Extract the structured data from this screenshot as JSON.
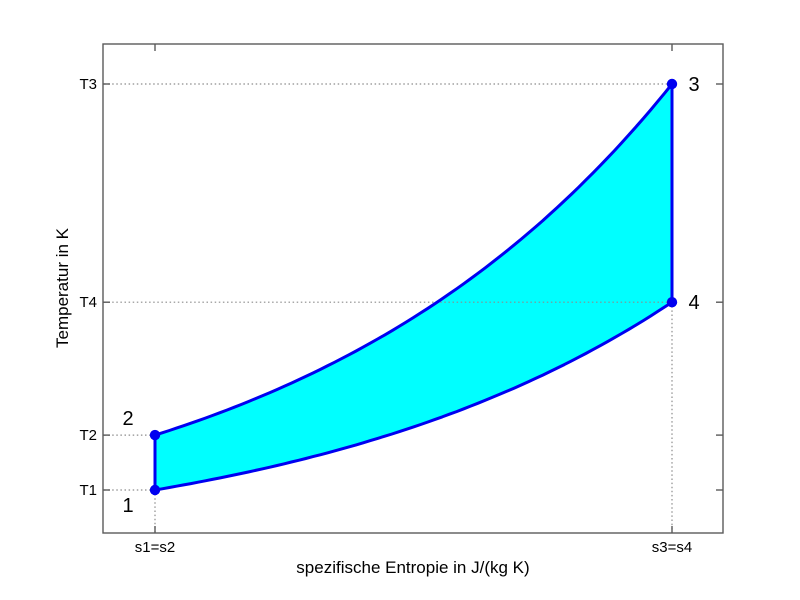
{
  "figure": {
    "background": "#ffffff"
  },
  "chart_data": {
    "type": "area",
    "title": "",
    "xlabel": "spezifische Entropie in J/(kg K)",
    "ylabel": "Temperatur in K",
    "grid": "off",
    "legend": "none",
    "x_ticks": [
      {
        "label": "s1=s2",
        "s": 0
      },
      {
        "label": "s3=s4",
        "s": 1
      }
    ],
    "y_ticks": [
      {
        "label": "T1",
        "T": 1.0
      },
      {
        "label": "T2",
        "T": 1.85
      },
      {
        "label": "T4",
        "T": 3.91
      },
      {
        "label": "T3",
        "T": 7.29
      }
    ],
    "axis_ranges": {
      "s": [
        -0.1,
        1.1
      ],
      "T": [
        0.33,
        7.91
      ]
    },
    "points": [
      {
        "label": "1",
        "s": 0,
        "T": 1.0
      },
      {
        "label": "2",
        "s": 0,
        "T": 1.85
      },
      {
        "label": "3",
        "s": 1,
        "T": 7.29
      },
      {
        "label": "4",
        "s": 1,
        "T": 3.91
      }
    ],
    "edges": [
      {
        "from": 0,
        "to": 1,
        "type": "line"
      },
      {
        "from": 1,
        "to": 2,
        "type": "exponential"
      },
      {
        "from": 2,
        "to": 3,
        "type": "line"
      },
      {
        "from": 3,
        "to": 0,
        "type": "exponential"
      }
    ],
    "guides": {
      "horizontal_to_axis": [
        "1",
        "2",
        "3",
        "4"
      ],
      "vertical_to_axis": [
        "1",
        "4"
      ]
    },
    "colors": {
      "fill": "#00ffff",
      "line": "#0000f0",
      "marker": "#0000f0",
      "guide": "#8c8c8c",
      "frame": "#5a5a5a",
      "text": "#000000"
    }
  }
}
